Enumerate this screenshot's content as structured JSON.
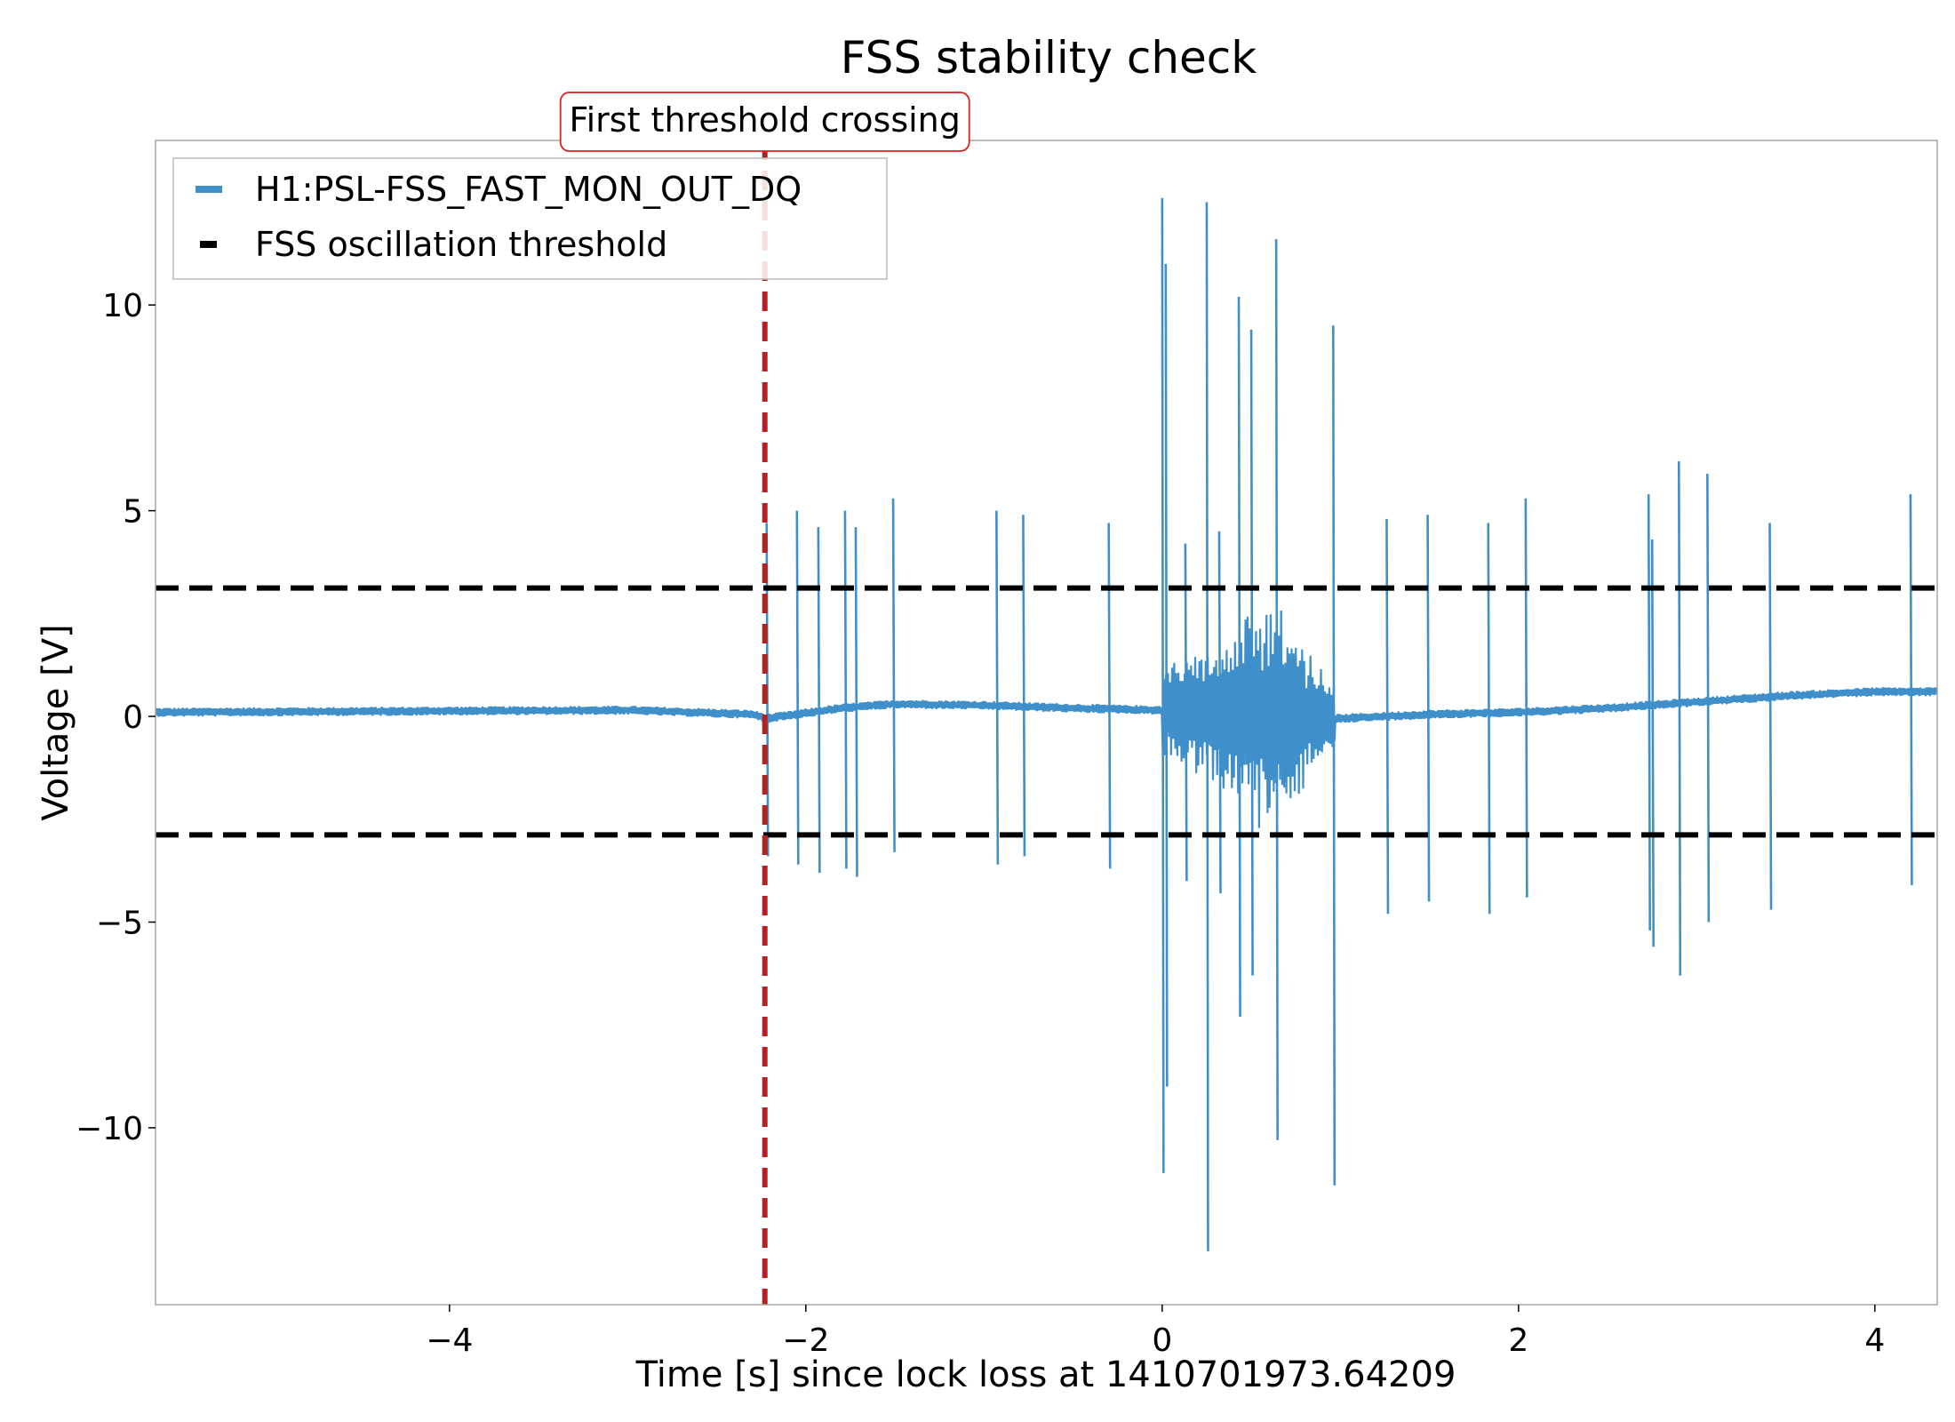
{
  "chart_data": {
    "type": "line",
    "title": "FSS stability check",
    "xlabel": "Time [s] since lock loss at 1410701973.64209",
    "ylabel": "Voltage [V]",
    "xlim": [
      -5.65,
      4.35
    ],
    "ylim": [
      -14.3,
      14.0
    ],
    "x_ticks": [
      -4,
      -2,
      0,
      2,
      4
    ],
    "x_tick_labels": [
      "−4",
      "−2",
      "0",
      "2",
      "4"
    ],
    "y_ticks": [
      -10,
      -5,
      0,
      5,
      10
    ],
    "y_tick_labels": [
      "−10",
      "−5",
      "0",
      "5",
      "10"
    ],
    "grid": false,
    "legend": {
      "location": "upper-left",
      "entries": [
        "H1:PSL-FSS_FAST_MON_OUT_DQ",
        "FSS oscillation threshold"
      ]
    },
    "colors": {
      "signal": "#3f8fcb",
      "threshold": "#000000",
      "crossing_line": "#b22222",
      "annotation_border": "#e02020"
    },
    "series": [
      {
        "name": "H1:PSL-FSS_FAST_MON_OUT_DQ",
        "baseline": [
          [
            -5.65,
            0.1
          ],
          [
            -3.0,
            0.15
          ],
          [
            -2.3,
            0.05
          ],
          [
            -2.22,
            -0.05
          ],
          [
            -1.8,
            0.2
          ],
          [
            -1.5,
            0.3
          ],
          [
            -1.0,
            0.27
          ],
          [
            -0.5,
            0.2
          ],
          [
            0.0,
            0.15
          ],
          [
            1.0,
            -0.05
          ],
          [
            1.5,
            0.05
          ],
          [
            2.0,
            0.1
          ],
          [
            2.5,
            0.2
          ],
          [
            3.0,
            0.35
          ],
          [
            3.5,
            0.5
          ],
          [
            4.0,
            0.6
          ],
          [
            4.35,
            0.6
          ]
        ],
        "spikes": [
          [
            -2.22,
            4.7,
            -3.4
          ],
          [
            -2.05,
            5.0,
            -3.6
          ],
          [
            -1.93,
            4.6,
            -3.8
          ],
          [
            -1.78,
            5.0,
            -3.7
          ],
          [
            -1.72,
            4.6,
            -3.9
          ],
          [
            -1.51,
            5.3,
            -3.3
          ],
          [
            -0.93,
            5.0,
            -3.6
          ],
          [
            -0.78,
            4.9,
            -3.4
          ],
          [
            -0.3,
            4.7,
            -3.7
          ],
          [
            0.0,
            12.6,
            -11.1
          ],
          [
            0.02,
            11.0,
            -9.0
          ],
          [
            0.13,
            4.2,
            -4.0
          ],
          [
            0.25,
            12.5,
            -13.0
          ],
          [
            0.32,
            4.5,
            -4.3
          ],
          [
            0.43,
            10.2,
            -7.3
          ],
          [
            0.5,
            9.4,
            -6.3
          ],
          [
            0.64,
            11.6,
            -10.3
          ],
          [
            0.96,
            9.5,
            -11.4
          ],
          [
            1.26,
            4.8,
            -4.8
          ],
          [
            1.49,
            4.9,
            -4.5
          ],
          [
            1.83,
            4.7,
            -4.8
          ],
          [
            2.04,
            5.3,
            -4.4
          ],
          [
            2.73,
            5.4,
            -5.2
          ],
          [
            2.75,
            4.3,
            -5.6
          ],
          [
            2.9,
            6.2,
            -6.3
          ],
          [
            3.06,
            5.9,
            -5.0
          ],
          [
            3.41,
            4.7,
            -4.7
          ],
          [
            4.2,
            5.4,
            -4.1
          ]
        ]
      },
      {
        "name": "FSS oscillation threshold",
        "upper": 3.12,
        "lower": -2.88
      }
    ],
    "annotations": [
      {
        "type": "vline",
        "x": -2.23,
        "label": "First threshold crossing"
      }
    ]
  }
}
